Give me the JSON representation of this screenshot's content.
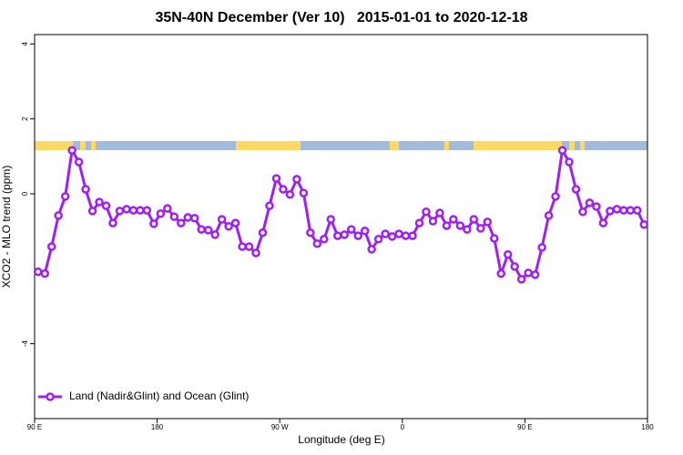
{
  "chart_data": {
    "type": "line",
    "title": "35N-40N December (Ver 10)   2015-01-01 to 2020-12-18",
    "xlabel": "Longitude (deg E)",
    "ylabel": "XCO2 - MLO trend (ppm)",
    "xlim": [
      90,
      540
    ],
    "ylim": [
      -6,
      4.25
    ],
    "xticks": [
      {
        "value": 90,
        "label": "90 E"
      },
      180,
      {
        "value": 270,
        "label": "90 W"
      },
      {
        "value": 360,
        "label": "0"
      },
      {
        "value": 450,
        "label": "90 E"
      },
      {
        "value": 540,
        "label": "180"
      }
    ],
    "yticks": [
      -4,
      0,
      2,
      4
    ],
    "legend": "bottom-left",
    "x": [
      92.5,
      97.5,
      102.5,
      107.5,
      112.5,
      117.5,
      122.5,
      127.5,
      132.5,
      137.5,
      142.5,
      147.5,
      152.5,
      157.5,
      162.5,
      167.5,
      172.5,
      177.5,
      182.5,
      187.5,
      192.5,
      197.5,
      202.5,
      207.5,
      212.5,
      217.5,
      222.5,
      227.5,
      232.5,
      237.5,
      242.5,
      247.5,
      252.5,
      257.5,
      262.5,
      267.5,
      272.5,
      277.5,
      282.5,
      287.5,
      292.5,
      297.5,
      302.5,
      307.5,
      312.5,
      317.5,
      322.5,
      327.5,
      332.5,
      337.5,
      342.5,
      347.5,
      352.5,
      357.5,
      362.5,
      367.5,
      372.5,
      377.5,
      382.5,
      387.5,
      392.5,
      397.5,
      402.5,
      407.5,
      412.5,
      417.5,
      422.5,
      427.5,
      432.5,
      437.5,
      442.5,
      447.5,
      452.5,
      457.5,
      462.5,
      467.5,
      472.5,
      477.5,
      482.5,
      487.5,
      492.5,
      497.5,
      502.5,
      507.5,
      512.5,
      517.5,
      522.5,
      527.5,
      532.5,
      537.5
    ],
    "series": [
      {
        "name": "Land (Nadir&Glint) and Ocean (Glint)",
        "color": "#a020f0",
        "values": [
          -2.08,
          -2.13,
          -1.41,
          -0.58,
          -0.07,
          1.16,
          0.85,
          0.12,
          -0.46,
          -0.22,
          -0.32,
          -0.78,
          -0.46,
          -0.41,
          -0.44,
          -0.44,
          -0.44,
          -0.8,
          -0.53,
          -0.39,
          -0.61,
          -0.78,
          -0.63,
          -0.65,
          -0.95,
          -0.97,
          -1.09,
          -0.68,
          -0.87,
          -0.78,
          -1.41,
          -1.41,
          -1.58,
          -1.04,
          -0.32,
          0.41,
          0.12,
          -0.02,
          0.39,
          0.02,
          -1.04,
          -1.33,
          -1.21,
          -0.68,
          -1.12,
          -1.09,
          -0.95,
          -1.12,
          -0.99,
          -1.48,
          -1.21,
          -1.07,
          -1.14,
          -1.07,
          -1.12,
          -1.12,
          -0.78,
          -0.48,
          -0.73,
          -0.51,
          -0.85,
          -0.68,
          -0.85,
          -0.95,
          -0.68,
          -0.92,
          -0.75,
          -1.19,
          -2.13,
          -1.62,
          -1.94,
          -2.28,
          -2.11,
          -2.16,
          -1.43,
          -0.58,
          -0.07,
          1.16,
          0.85,
          0.12,
          -0.48,
          -0.24,
          -0.34,
          -0.78,
          -0.46,
          -0.41,
          -0.44,
          -0.44,
          -0.44,
          -0.82
        ]
      }
    ]
  }
}
